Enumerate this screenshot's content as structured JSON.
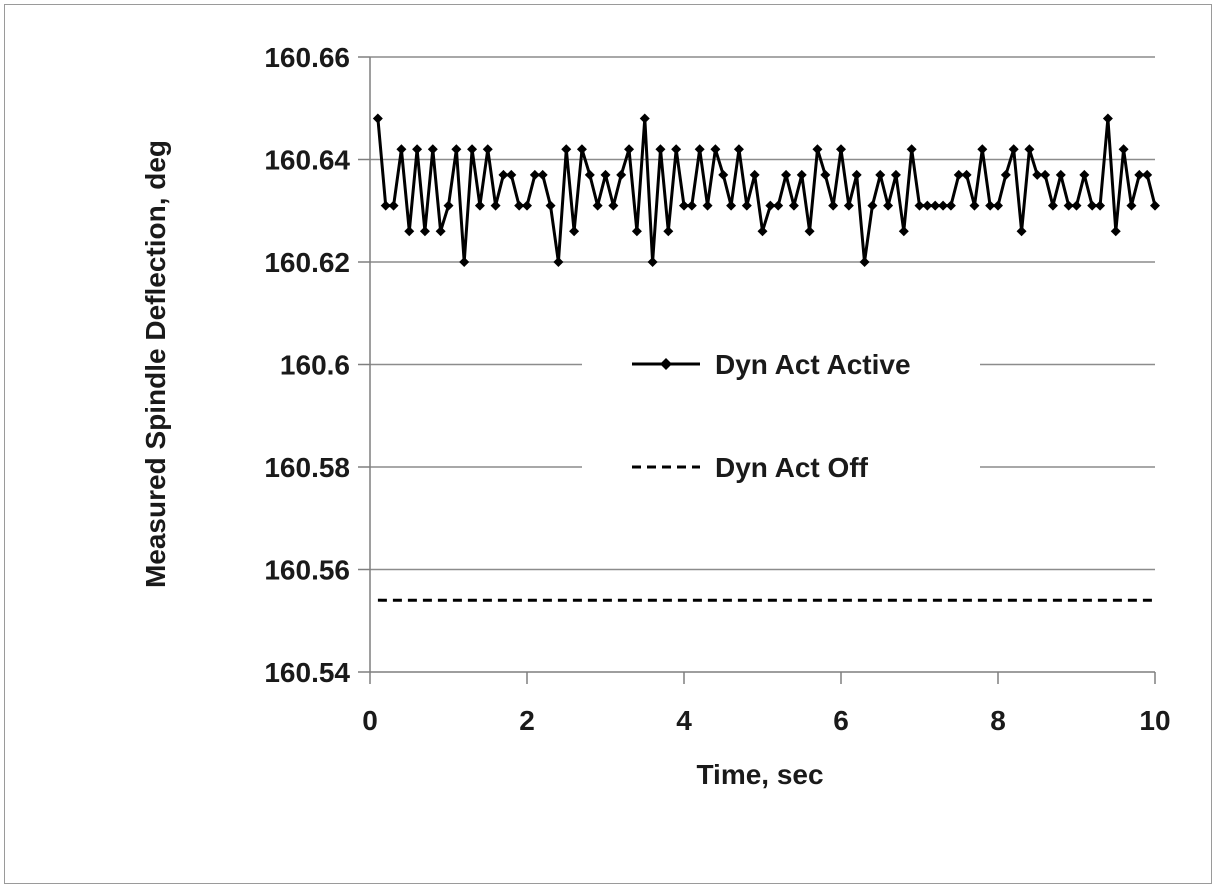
{
  "chart_data": {
    "type": "line",
    "xlabel": "Time, sec",
    "ylabel": "Measured Spindle Deflection, deg",
    "xlim": [
      0,
      10
    ],
    "ylim": [
      160.54,
      160.66
    ],
    "x_ticks": [
      "0",
      "2",
      "4",
      "6",
      "8",
      "10"
    ],
    "y_ticks": [
      "160.54",
      "160.56",
      "160.58",
      "160.6",
      "160.62",
      "160.64",
      "160.66"
    ],
    "grid": "horizontal",
    "legend_position": "center",
    "series": [
      {
        "name": "Dyn Act Active",
        "style": "solid-diamond",
        "color": "#000000",
        "x": [
          0.1,
          0.2,
          0.3,
          0.4,
          0.5,
          0.6,
          0.7,
          0.8,
          0.9,
          1.0,
          1.1,
          1.2,
          1.3,
          1.4,
          1.5,
          1.6,
          1.7,
          1.8,
          1.9,
          2.0,
          2.1,
          2.2,
          2.3,
          2.4,
          2.5,
          2.6,
          2.7,
          2.8,
          2.9,
          3.0,
          3.1,
          3.2,
          3.3,
          3.4,
          3.5,
          3.6,
          3.7,
          3.8,
          3.9,
          4.0,
          4.1,
          4.2,
          4.3,
          4.4,
          4.5,
          4.6,
          4.7,
          4.8,
          4.9,
          5.0,
          5.1,
          5.2,
          5.3,
          5.4,
          5.5,
          5.6,
          5.7,
          5.8,
          5.9,
          6.0,
          6.1,
          6.2,
          6.3,
          6.4,
          6.5,
          6.6,
          6.7,
          6.8,
          6.9,
          7.0,
          7.1,
          7.2,
          7.3,
          7.4,
          7.5,
          7.6,
          7.7,
          7.8,
          7.9,
          8.0,
          8.1,
          8.2,
          8.3,
          8.4,
          8.5,
          8.6,
          8.7,
          8.8,
          8.9,
          9.0,
          9.1,
          9.2,
          9.3,
          9.4,
          9.5,
          9.6,
          9.7,
          9.8,
          9.9,
          10.0
        ],
        "values": [
          160.648,
          160.631,
          160.631,
          160.642,
          160.626,
          160.642,
          160.626,
          160.642,
          160.626,
          160.631,
          160.642,
          160.62,
          160.642,
          160.631,
          160.642,
          160.631,
          160.637,
          160.637,
          160.631,
          160.631,
          160.637,
          160.637,
          160.631,
          160.62,
          160.642,
          160.626,
          160.642,
          160.637,
          160.631,
          160.637,
          160.631,
          160.637,
          160.642,
          160.626,
          160.648,
          160.62,
          160.642,
          160.626,
          160.642,
          160.631,
          160.631,
          160.642,
          160.631,
          160.642,
          160.637,
          160.631,
          160.642,
          160.631,
          160.637,
          160.626,
          160.631,
          160.631,
          160.637,
          160.631,
          160.637,
          160.626,
          160.642,
          160.637,
          160.631,
          160.642,
          160.631,
          160.637,
          160.62,
          160.631,
          160.637,
          160.631,
          160.637,
          160.626,
          160.642,
          160.631,
          160.631,
          160.631,
          160.631,
          160.631,
          160.637,
          160.637,
          160.631,
          160.642,
          160.631,
          160.631,
          160.637,
          160.642,
          160.626,
          160.642,
          160.637,
          160.637,
          160.631,
          160.637,
          160.631,
          160.631,
          160.637,
          160.631,
          160.631,
          160.648,
          160.626,
          160.642,
          160.631,
          160.637,
          160.637,
          160.631
        ]
      },
      {
        "name": "Dyn Act Off",
        "style": "dashed",
        "color": "#000000",
        "x": [
          0.1,
          10.0
        ],
        "values": [
          160.554,
          160.554
        ]
      }
    ]
  }
}
